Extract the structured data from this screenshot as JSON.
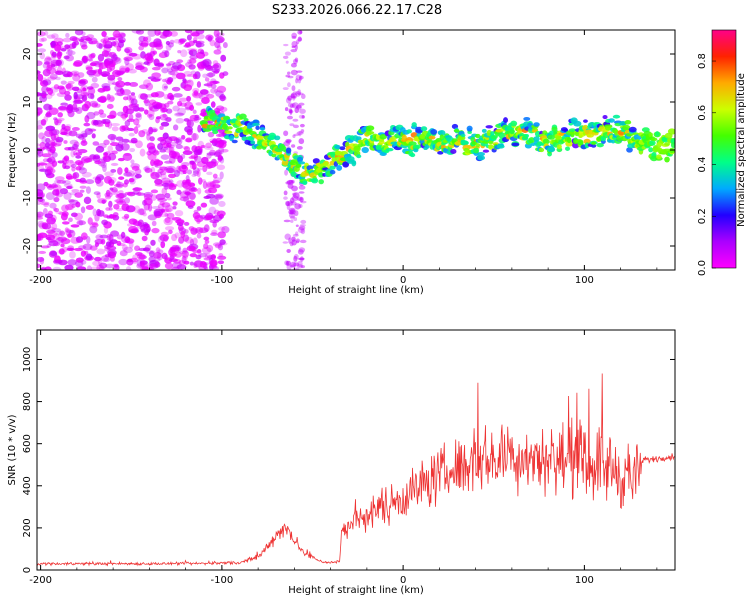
{
  "title": "S233.2026.066.22.17.C28",
  "chart_data": [
    {
      "type": "heatmap",
      "xlabel": "Height of straight line (km)",
      "ylabel": "Frequency (Hz)",
      "xlim": [
        -202,
        150
      ],
      "ylim": [
        -25,
        25
      ],
      "x_ticks": [
        "-200",
        "-100",
        "0",
        "100"
      ],
      "y_ticks": [
        "20",
        "10",
        "0",
        "-10",
        "-20"
      ],
      "colorbar": {
        "label": "Normalized spectral amplitude",
        "range": [
          0,
          0.92
        ],
        "ticks": [
          "0.0",
          "0.2",
          "0.4",
          "0.6",
          "0.8"
        ],
        "colors": [
          "#ff00ff",
          "#aa00ff",
          "#2200ff",
          "#00aaff",
          "#00ff88",
          "#44ff00",
          "#ccff00",
          "#ffaa00",
          "#ff2200",
          "#ff0088"
        ]
      },
      "ridge": {
        "x": [
          -110,
          -95,
          -85,
          -75,
          -65,
          -55,
          -50,
          -45,
          -40,
          -30,
          -20,
          -10,
          0,
          10,
          20,
          30,
          40,
          50,
          60,
          70,
          80,
          90,
          100,
          110,
          120,
          130,
          150
        ],
        "frequency": [
          6,
          5,
          4,
          2,
          -2,
          -4,
          -5,
          -4,
          -2,
          0,
          2,
          2,
          2,
          2,
          1,
          2,
          1,
          2,
          4,
          3,
          2,
          3,
          3,
          4,
          4,
          2,
          1
        ]
      },
      "noise_region_x": [
        -202,
        -98
      ]
    },
    {
      "type": "line",
      "xlabel": "Height of straight line (km)",
      "ylabel": "SNR (10 * v/v)",
      "xlim": [
        -202,
        150
      ],
      "ylim": [
        0,
        1140
      ],
      "x_ticks": [
        "-200",
        "-100",
        "0",
        "100"
      ],
      "y_ticks": [
        "0",
        "200",
        "400",
        "600",
        "800",
        "1000"
      ],
      "color": "#ee3333",
      "envelope": {
        "x": [
          -202,
          -120,
          -90,
          -80,
          -75,
          -70,
          -65,
          -60,
          -55,
          -50,
          -45,
          -40,
          -35,
          -34,
          -20,
          0,
          20,
          40,
          60,
          80,
          100,
          110,
          120,
          130,
          132,
          150
        ],
        "mean": [
          30,
          30,
          35,
          60,
          110,
          170,
          200,
          150,
          80,
          60,
          40,
          35,
          40,
          190,
          260,
          350,
          450,
          520,
          540,
          530,
          520,
          500,
          460,
          440,
          520,
          540
        ],
        "spread": [
          10,
          10,
          12,
          20,
          35,
          55,
          70,
          50,
          25,
          15,
          10,
          10,
          10,
          70,
          110,
          160,
          200,
          230,
          240,
          240,
          260,
          260,
          260,
          220,
          25,
          25
        ]
      }
    }
  ]
}
